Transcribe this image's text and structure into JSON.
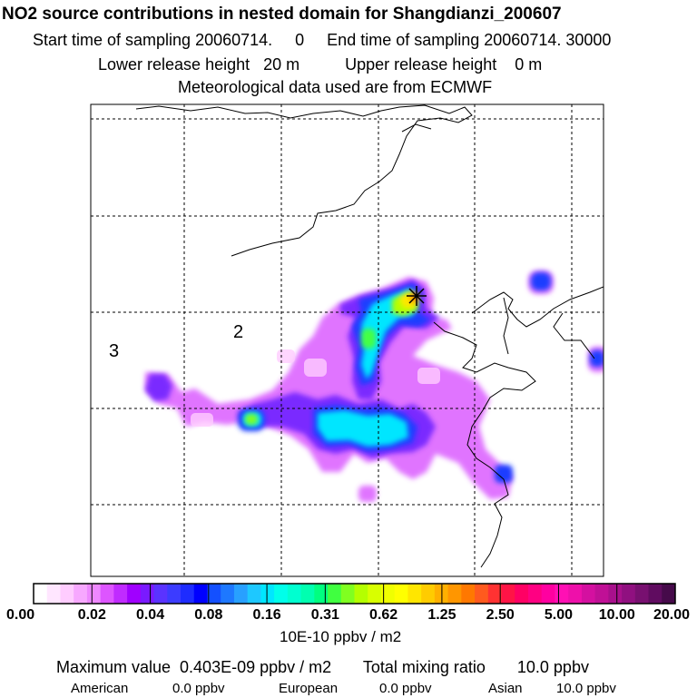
{
  "header": {
    "title": "NO2 source contributions in nested domain for Shangdianzi_200607",
    "sampling_line": "Start time of sampling 20060714.     0     End time of sampling 20060714. 30000",
    "release_line": "Lower release height   20 m          Upper release height    0 m",
    "met_line": "Meteorological data used are from ECMWF"
  },
  "map": {
    "ring_labels": [
      "2",
      "3"
    ],
    "receptor_marker": "star",
    "colors": {
      "frame": "#000000",
      "grid": "#000000",
      "coast": "#000000"
    }
  },
  "colorbar": {
    "tick_labels": [
      "0.00",
      "0.02",
      "0.04",
      "0.08",
      "0.16",
      "0.31",
      "0.62",
      "1.25",
      "2.50",
      "5.00",
      "10.00",
      "20.00"
    ],
    "colors": [
      "#ffffff",
      "#ffe6ff",
      "#ffccff",
      "#f7a8ff",
      "#ee88ff",
      "#dd55ff",
      "#c02bff",
      "#a000ff",
      "#7a1aff",
      "#5a33ff",
      "#3c3cff",
      "#1e2cff",
      "#0000ff",
      "#1450ff",
      "#1e78ff",
      "#28a0ff",
      "#1ec8ff",
      "#00e6ff",
      "#00ffea",
      "#00ffd0",
      "#00ffb0",
      "#00ff80",
      "#40ff40",
      "#80ff20",
      "#b4ff00",
      "#d8ff00",
      "#f0ff00",
      "#ffff00",
      "#ffe600",
      "#ffcc00",
      "#ffb000",
      "#ff9600",
      "#ff7800",
      "#ff5a1e",
      "#ff3232",
      "#ff1446",
      "#ff0064",
      "#ff0082",
      "#ff00a0",
      "#ff10b4",
      "#ee10aa",
      "#d410a0",
      "#c01096",
      "#a8108c",
      "#901080",
      "#781070",
      "#600c60",
      "#460a4a"
    ],
    "units": "10E-10 ppbv / m2"
  },
  "footer": {
    "max_line": "Maximum value  0.403E-09 ppbv / m2       Total mixing ratio       10.0 ppbv",
    "american_label": "American",
    "american_value": "0.0 ppbv",
    "european_label": "European",
    "european_value": "0.0 ppbv",
    "asian_label": "Asian",
    "asian_value": "10.0 ppbv"
  }
}
